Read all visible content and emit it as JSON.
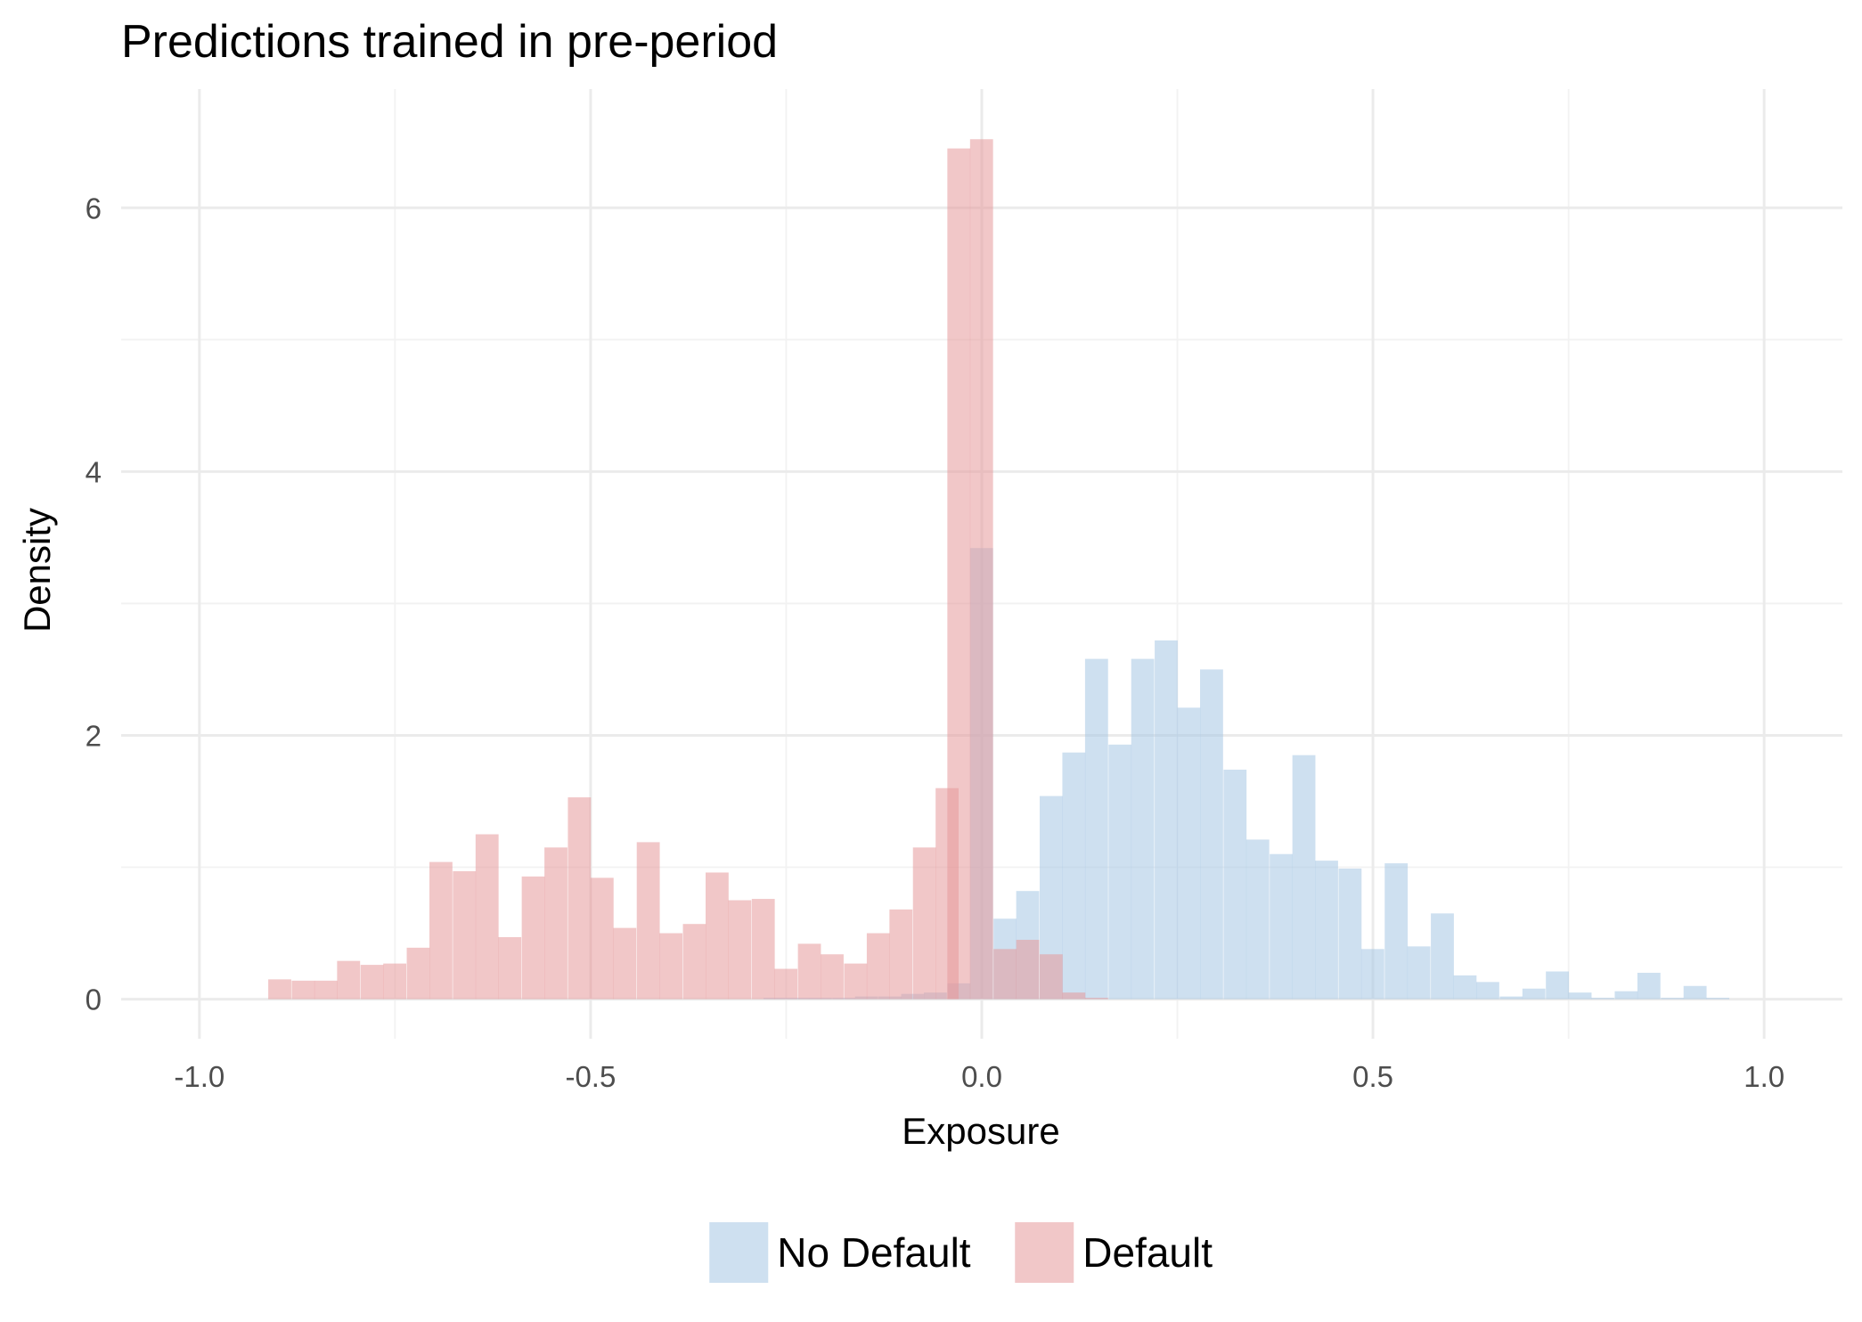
{
  "chart_data": {
    "type": "histogram",
    "title": "Predictions trained in pre-period",
    "xlabel": "Exposure",
    "ylabel": "Density",
    "xlim": [
      -1.1,
      1.1
    ],
    "ylim": [
      -0.3,
      6.9
    ],
    "x_ticks": [
      -1.0,
      -0.5,
      0.0,
      0.5,
      1.0
    ],
    "x_tick_labels": [
      "-1.0",
      "-0.5",
      "0.0",
      "0.5",
      "1.0"
    ],
    "y_ticks": [
      0,
      2,
      4,
      6
    ],
    "y_tick_labels": [
      "0",
      "2",
      "4",
      "6"
    ],
    "grid": true,
    "legend_position": "bottom",
    "bin_width": 0.0294,
    "series": [
      {
        "name": "No Default",
        "color": "#a6c6e4",
        "opacity": 0.55,
        "bins": [
          {
            "x0": -0.279,
            "value": 0.01
          },
          {
            "x0": -0.25,
            "value": 0.01
          },
          {
            "x0": -0.221,
            "value": 0.01
          },
          {
            "x0": -0.191,
            "value": 0.01
          },
          {
            "x0": -0.162,
            "value": 0.02
          },
          {
            "x0": -0.132,
            "value": 0.02
          },
          {
            "x0": -0.103,
            "value": 0.04
          },
          {
            "x0": -0.074,
            "value": 0.05
          },
          {
            "x0": -0.044,
            "value": 0.12
          },
          {
            "x0": -0.015,
            "value": 3.42
          },
          {
            "x0": 0.015,
            "value": 0.61
          },
          {
            "x0": 0.044,
            "value": 0.82
          },
          {
            "x0": 0.074,
            "value": 1.54
          },
          {
            "x0": 0.103,
            "value": 1.87
          },
          {
            "x0": 0.132,
            "value": 2.58
          },
          {
            "x0": 0.162,
            "value": 1.93
          },
          {
            "x0": 0.191,
            "value": 2.58
          },
          {
            "x0": 0.221,
            "value": 2.72
          },
          {
            "x0": 0.25,
            "value": 2.21
          },
          {
            "x0": 0.279,
            "value": 2.5
          },
          {
            "x0": 0.309,
            "value": 1.74
          },
          {
            "x0": 0.338,
            "value": 1.21
          },
          {
            "x0": 0.368,
            "value": 1.1
          },
          {
            "x0": 0.397,
            "value": 1.85
          },
          {
            "x0": 0.426,
            "value": 1.05
          },
          {
            "x0": 0.456,
            "value": 0.99
          },
          {
            "x0": 0.485,
            "value": 0.38
          },
          {
            "x0": 0.515,
            "value": 1.03
          },
          {
            "x0": 0.544,
            "value": 0.4
          },
          {
            "x0": 0.574,
            "value": 0.65
          },
          {
            "x0": 0.603,
            "value": 0.18
          },
          {
            "x0": 0.632,
            "value": 0.13
          },
          {
            "x0": 0.662,
            "value": 0.02
          },
          {
            "x0": 0.691,
            "value": 0.08
          },
          {
            "x0": 0.721,
            "value": 0.21
          },
          {
            "x0": 0.75,
            "value": 0.05
          },
          {
            "x0": 0.779,
            "value": 0.01
          },
          {
            "x0": 0.809,
            "value": 0.06
          },
          {
            "x0": 0.838,
            "value": 0.2
          },
          {
            "x0": 0.868,
            "value": 0.01
          },
          {
            "x0": 0.897,
            "value": 0.1
          },
          {
            "x0": 0.926,
            "value": 0.01
          }
        ]
      },
      {
        "name": "Default",
        "color": "#e5999b",
        "opacity": 0.55,
        "bins": [
          {
            "x0": -0.912,
            "value": 0.15
          },
          {
            "x0": -0.882,
            "value": 0.14
          },
          {
            "x0": -0.853,
            "value": 0.14
          },
          {
            "x0": -0.824,
            "value": 0.29
          },
          {
            "x0": -0.794,
            "value": 0.26
          },
          {
            "x0": -0.765,
            "value": 0.27
          },
          {
            "x0": -0.735,
            "value": 0.39
          },
          {
            "x0": -0.706,
            "value": 1.04
          },
          {
            "x0": -0.676,
            "value": 0.97
          },
          {
            "x0": -0.647,
            "value": 1.25
          },
          {
            "x0": -0.618,
            "value": 0.47
          },
          {
            "x0": -0.588,
            "value": 0.93
          },
          {
            "x0": -0.559,
            "value": 1.15
          },
          {
            "x0": -0.529,
            "value": 1.53
          },
          {
            "x0": -0.5,
            "value": 0.92
          },
          {
            "x0": -0.471,
            "value": 0.54
          },
          {
            "x0": -0.441,
            "value": 1.19
          },
          {
            "x0": -0.412,
            "value": 0.5
          },
          {
            "x0": -0.382,
            "value": 0.57
          },
          {
            "x0": -0.353,
            "value": 0.96
          },
          {
            "x0": -0.324,
            "value": 0.75
          },
          {
            "x0": -0.294,
            "value": 0.76
          },
          {
            "x0": -0.265,
            "value": 0.23
          },
          {
            "x0": -0.235,
            "value": 0.42
          },
          {
            "x0": -0.206,
            "value": 0.34
          },
          {
            "x0": -0.176,
            "value": 0.27
          },
          {
            "x0": -0.147,
            "value": 0.5
          },
          {
            "x0": -0.118,
            "value": 0.68
          },
          {
            "x0": -0.088,
            "value": 1.15
          },
          {
            "x0": -0.059,
            "value": 1.6
          },
          {
            "x0": -0.044,
            "value": 6.45
          },
          {
            "x0": -0.015,
            "value": 6.52
          },
          {
            "x0": 0.015,
            "value": 0.38
          },
          {
            "x0": 0.044,
            "value": 0.45
          },
          {
            "x0": 0.074,
            "value": 0.34
          },
          {
            "x0": 0.103,
            "value": 0.05
          },
          {
            "x0": 0.132,
            "value": 0.01
          }
        ]
      }
    ]
  }
}
